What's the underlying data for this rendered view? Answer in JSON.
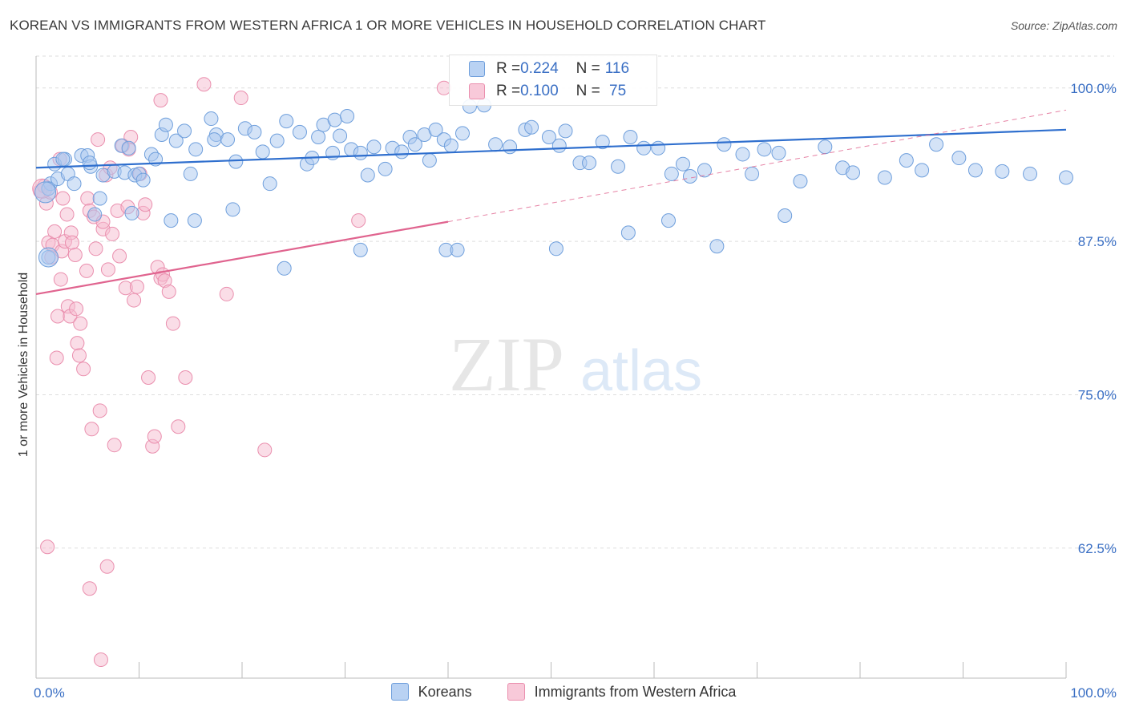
{
  "title": "KOREAN VS IMMIGRANTS FROM WESTERN AFRICA 1 OR MORE VEHICLES IN HOUSEHOLD CORRELATION CHART",
  "source": "Source: ZipAtlas.com",
  "watermark": {
    "zip": "ZIP",
    "atlas": "atlas"
  },
  "colors": {
    "blue_fill": "#a9c8f0",
    "blue_stroke": "#6f9fdc",
    "blue_line": "#2f6fce",
    "pink_fill": "#f6bcd0",
    "pink_stroke": "#ea8fae",
    "pink_line": "#e0648f",
    "axis_text": "#3a6fc4",
    "grid": "#dddddd"
  },
  "legend": {
    "rows": [
      {
        "r_label": "R = ",
        "r_value": "0.224",
        "n_label": "N = ",
        "n_value": "116"
      },
      {
        "r_label": "R = ",
        "r_value": "0.100",
        "n_label": "N = ",
        "n_value": " 75"
      }
    ],
    "series_names": [
      "Koreans",
      "Immigrants from Western Africa"
    ]
  },
  "chart_data": {
    "type": "scatter",
    "title": "KOREAN VS IMMIGRANTS FROM WESTERN AFRICA 1 OR MORE VEHICLES IN HOUSEHOLD CORRELATION CHART",
    "xlabel": "",
    "ylabel": "1 or more Vehicles in Household",
    "xlim": [
      0,
      100
    ],
    "ylim": [
      51.9,
      102.6
    ],
    "x_tick_labels": [
      "0.0%",
      "100.0%"
    ],
    "y_ticks": [
      62.5,
      75.0,
      87.5,
      100.0
    ],
    "y_tick_labels": [
      "62.5%",
      "75.0%",
      "87.5%",
      "100.0%"
    ],
    "grid": true,
    "legend_position": "top-center",
    "series": [
      {
        "name": "Koreans",
        "R": 0.224,
        "N": 116,
        "trend": {
          "x": [
            0,
            100
          ],
          "y": [
            93.5,
            96.6
          ],
          "dashed_extension": false
        },
        "points": [
          [
            1.4,
            92.2
          ],
          [
            1.8,
            93.8
          ],
          [
            2.1,
            92.6
          ],
          [
            2.8,
            94.2
          ],
          [
            3.1,
            93.0
          ],
          [
            3.7,
            92.2
          ],
          [
            4.4,
            94.5
          ],
          [
            5.0,
            94.5
          ],
          [
            5.3,
            93.6
          ],
          [
            6.2,
            91.0
          ],
          [
            6.5,
            92.9
          ],
          [
            7.6,
            93.2
          ],
          [
            8.3,
            95.3
          ],
          [
            8.6,
            93.1
          ],
          [
            9.0,
            95.1
          ],
          [
            9.6,
            92.9
          ],
          [
            10.0,
            93.0
          ],
          [
            10.4,
            92.5
          ],
          [
            11.2,
            94.6
          ],
          [
            11.6,
            94.2
          ],
          [
            12.2,
            96.2
          ],
          [
            12.6,
            97.0
          ],
          [
            13.6,
            95.7
          ],
          [
            14.4,
            96.5
          ],
          [
            15.5,
            95.0
          ],
          [
            17.0,
            97.5
          ],
          [
            17.5,
            96.2
          ],
          [
            18.6,
            95.8
          ],
          [
            19.4,
            94.0
          ],
          [
            20.3,
            96.7
          ],
          [
            21.2,
            96.4
          ],
          [
            22.0,
            94.8
          ],
          [
            22.7,
            92.2
          ],
          [
            23.4,
            95.7
          ],
          [
            24.3,
            97.3
          ],
          [
            25.6,
            96.4
          ],
          [
            26.3,
            93.8
          ],
          [
            26.8,
            94.3
          ],
          [
            27.4,
            96.0
          ],
          [
            27.9,
            97.0
          ],
          [
            29.0,
            97.4
          ],
          [
            29.5,
            96.1
          ],
          [
            30.2,
            97.7
          ],
          [
            30.6,
            95.0
          ],
          [
            31.5,
            94.7
          ],
          [
            32.2,
            92.9
          ],
          [
            32.8,
            95.2
          ],
          [
            33.9,
            93.4
          ],
          [
            34.6,
            95.1
          ],
          [
            35.5,
            94.8
          ],
          [
            36.3,
            96.0
          ],
          [
            36.8,
            95.4
          ],
          [
            37.7,
            96.2
          ],
          [
            38.2,
            94.1
          ],
          [
            38.8,
            96.6
          ],
          [
            39.6,
            95.8
          ],
          [
            40.3,
            95.3
          ],
          [
            41.4,
            96.3
          ],
          [
            42.1,
            98.5
          ],
          [
            43.5,
            98.6
          ],
          [
            44.6,
            95.4
          ],
          [
            46.0,
            95.2
          ],
          [
            47.5,
            96.6
          ],
          [
            48.1,
            96.8
          ],
          [
            49.8,
            96.0
          ],
          [
            50.8,
            95.3
          ],
          [
            51.4,
            96.5
          ],
          [
            52.8,
            93.9
          ],
          [
            53.7,
            93.9
          ],
          [
            55.0,
            95.6
          ],
          [
            56.5,
            93.6
          ],
          [
            57.7,
            96.0
          ],
          [
            59.0,
            95.1
          ],
          [
            60.4,
            95.1
          ],
          [
            61.7,
            93.0
          ],
          [
            62.8,
            93.8
          ],
          [
            63.5,
            92.8
          ],
          [
            64.9,
            93.3
          ],
          [
            66.8,
            95.4
          ],
          [
            68.6,
            94.6
          ],
          [
            69.5,
            93.0
          ],
          [
            70.7,
            95.0
          ],
          [
            72.1,
            94.7
          ],
          [
            74.2,
            92.4
          ],
          [
            76.6,
            95.2
          ],
          [
            78.3,
            93.5
          ],
          [
            79.3,
            93.1
          ],
          [
            82.4,
            92.7
          ],
          [
            84.5,
            94.1
          ],
          [
            86.0,
            93.3
          ],
          [
            87.4,
            95.4
          ],
          [
            89.6,
            94.3
          ],
          [
            91.2,
            93.3
          ],
          [
            93.8,
            93.2
          ],
          [
            96.5,
            93.0
          ],
          [
            100.0,
            92.7
          ],
          [
            1.2,
            91.8
          ],
          [
            5.7,
            89.7
          ],
          [
            9.3,
            89.8
          ],
          [
            13.1,
            89.2
          ],
          [
            15.4,
            89.2
          ],
          [
            19.1,
            90.1
          ],
          [
            24.1,
            85.3
          ],
          [
            31.5,
            86.8
          ],
          [
            39.8,
            86.8
          ],
          [
            40.9,
            86.8
          ],
          [
            50.5,
            86.9
          ],
          [
            57.5,
            88.2
          ],
          [
            61.4,
            89.2
          ],
          [
            66.1,
            87.1
          ],
          [
            72.7,
            89.6
          ],
          [
            1.2,
            86.2
          ],
          [
            5.2,
            93.9
          ],
          [
            2.6,
            94.2
          ],
          [
            15.0,
            93.0
          ],
          [
            17.3,
            95.8
          ],
          [
            28.8,
            94.7
          ]
        ]
      },
      {
        "name": "Immigrants from Western Africa",
        "R": 0.1,
        "N": 75,
        "trend": {
          "x": [
            0,
            40
          ],
          "y": [
            83.2,
            89.1
          ],
          "dashed_extension": {
            "x": [
              40,
              100
            ],
            "y": [
              89.1,
              98.2
            ]
          }
        },
        "points": [
          [
            0.4,
            91.6
          ],
          [
            0.8,
            92.0
          ],
          [
            1.0,
            90.6
          ],
          [
            1.2,
            87.4
          ],
          [
            1.4,
            91.5
          ],
          [
            1.5,
            86.2
          ],
          [
            1.6,
            87.2
          ],
          [
            1.8,
            88.3
          ],
          [
            2.0,
            78.0
          ],
          [
            2.1,
            81.4
          ],
          [
            2.4,
            84.4
          ],
          [
            2.5,
            86.7
          ],
          [
            2.6,
            91.0
          ],
          [
            2.8,
            87.5
          ],
          [
            3.0,
            89.7
          ],
          [
            3.1,
            82.2
          ],
          [
            3.3,
            81.4
          ],
          [
            3.4,
            88.2
          ],
          [
            3.5,
            87.4
          ],
          [
            3.8,
            86.4
          ],
          [
            3.9,
            82.0
          ],
          [
            4.0,
            79.2
          ],
          [
            4.2,
            78.2
          ],
          [
            4.3,
            80.8
          ],
          [
            4.6,
            77.1
          ],
          [
            4.9,
            85.1
          ],
          [
            5.0,
            91.0
          ],
          [
            5.2,
            90.0
          ],
          [
            5.4,
            72.2
          ],
          [
            5.6,
            89.5
          ],
          [
            5.8,
            86.9
          ],
          [
            6.0,
            95.8
          ],
          [
            6.2,
            73.7
          ],
          [
            6.5,
            88.5
          ],
          [
            6.8,
            92.9
          ],
          [
            7.0,
            85.2
          ],
          [
            7.2,
            93.5
          ],
          [
            7.4,
            88.1
          ],
          [
            7.6,
            70.9
          ],
          [
            7.9,
            90.0
          ],
          [
            8.1,
            86.3
          ],
          [
            8.4,
            95.3
          ],
          [
            8.7,
            83.7
          ],
          [
            8.9,
            90.3
          ],
          [
            9.2,
            96.0
          ],
          [
            9.5,
            82.7
          ],
          [
            9.8,
            83.8
          ],
          [
            10.1,
            93.0
          ],
          [
            10.4,
            89.8
          ],
          [
            10.6,
            90.5
          ],
          [
            10.9,
            76.4
          ],
          [
            11.3,
            70.8
          ],
          [
            11.5,
            71.6
          ],
          [
            11.8,
            85.4
          ],
          [
            12.1,
            84.5
          ],
          [
            12.3,
            84.8
          ],
          [
            12.5,
            84.3
          ],
          [
            12.9,
            83.4
          ],
          [
            13.3,
            80.8
          ],
          [
            13.8,
            72.4
          ],
          [
            14.5,
            76.4
          ],
          [
            16.3,
            100.3
          ],
          [
            18.5,
            83.2
          ],
          [
            19.9,
            99.2
          ],
          [
            22.2,
            70.5
          ],
          [
            31.3,
            89.2
          ],
          [
            39.6,
            100.0
          ],
          [
            1.1,
            62.6
          ],
          [
            5.2,
            59.2
          ],
          [
            6.9,
            61.0
          ],
          [
            6.3,
            53.4
          ],
          [
            2.3,
            94.2
          ],
          [
            9.0,
            95.0
          ],
          [
            12.1,
            99.0
          ],
          [
            6.5,
            89.1
          ]
        ]
      }
    ]
  }
}
